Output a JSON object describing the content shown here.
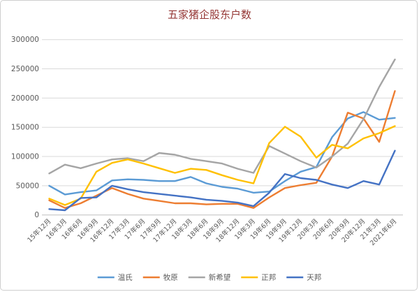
{
  "title": "五家猪企股东户数",
  "title_color": "#953735",
  "axis_text_color": "#595959",
  "grid_color": "#d9d9d9",
  "axis_line_color": "#bfbfbf",
  "chart_data": {
    "type": "line",
    "title": "五家猪企股东户数",
    "x": [
      "15年12月",
      "16年3月",
      "16年6月",
      "16年9月",
      "16年12月",
      "17年3月",
      "17年6月",
      "17年9月",
      "17年12月",
      "18年3月",
      "18年6月",
      "18年9月",
      "18年12月",
      "19年3月",
      "19年6月",
      "19年9月",
      "19年12月",
      "20年3月",
      "20年6月",
      "20年9月",
      "20年12月",
      "21年3月",
      "2021年6月"
    ],
    "series": [
      {
        "name": "温氏",
        "color": "#5B9BD5",
        "values": [
          50000,
          35000,
          39000,
          42000,
          59000,
          61000,
          60000,
          58000,
          58000,
          65000,
          54000,
          48000,
          45000,
          38000,
          40000,
          58000,
          74000,
          82000,
          133000,
          165000,
          176000,
          163000,
          166000
        ]
      },
      {
        "name": "牧原",
        "color": "#ED7D31",
        "values": [
          25000,
          12000,
          20000,
          33000,
          46000,
          36000,
          28000,
          24000,
          20000,
          20000,
          18000,
          19000,
          19000,
          12000,
          30000,
          46000,
          51000,
          55000,
          100000,
          175000,
          165000,
          125000,
          212000
        ]
      },
      {
        "name": "新希望",
        "color": "#A5A5A5",
        "values": [
          71000,
          86000,
          80000,
          88000,
          95000,
          97000,
          92000,
          106000,
          103000,
          96000,
          92000,
          88000,
          79000,
          72000,
          118000,
          105000,
          92000,
          81000,
          100000,
          122000,
          164000,
          219000,
          266000
        ]
      },
      {
        "name": "正邦",
        "color": "#FFC000",
        "values": [
          28000,
          17000,
          28000,
          74000,
          89000,
          95000,
          88000,
          80000,
          72000,
          79000,
          77000,
          68000,
          60000,
          54000,
          123000,
          151000,
          134000,
          98000,
          120000,
          114000,
          131000,
          140000,
          152000
        ]
      },
      {
        "name": "天邦",
        "color": "#4472C4",
        "values": [
          10000,
          8000,
          29000,
          30000,
          50000,
          44000,
          39000,
          36000,
          33000,
          30000,
          26000,
          24000,
          21000,
          15000,
          38000,
          70000,
          63000,
          60000,
          52000,
          46000,
          58000,
          52000,
          110000
        ]
      }
    ],
    "ylim": [
      0,
      300000
    ],
    "ytick_step": 50000,
    "yticks": [
      "0",
      "50000",
      "100000",
      "150000",
      "200000",
      "250000",
      "300000"
    ],
    "grid": true,
    "legend_position": "bottom",
    "legend_labels": [
      "温氏",
      "牧原",
      "新希望",
      "正邦",
      "天邦"
    ]
  }
}
